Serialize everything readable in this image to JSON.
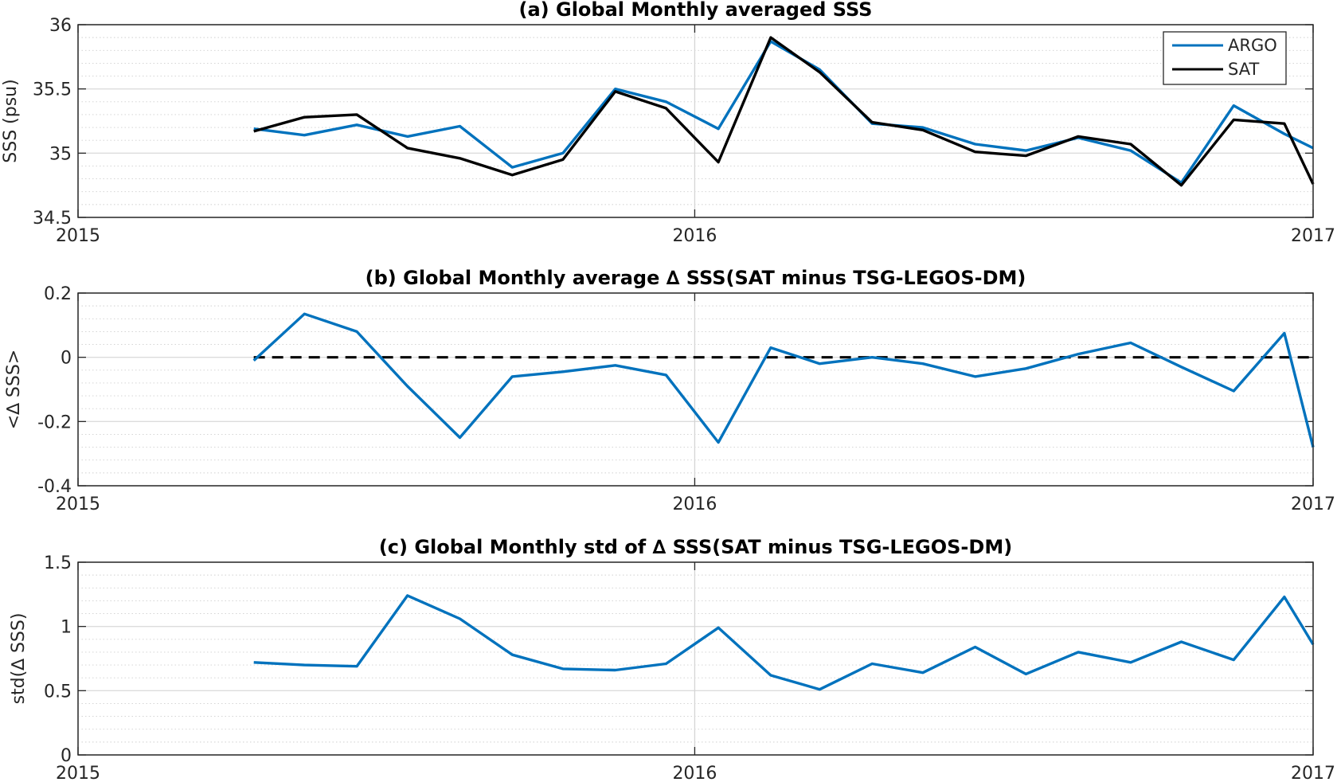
{
  "colors": {
    "argo": "#0072BD",
    "sat": "#000000",
    "zero_line": "#000000"
  },
  "x_ticks": [
    "2015",
    "2016",
    "2017"
  ],
  "legend": {
    "location": "top-right",
    "entries": [
      "ARGO",
      "SAT"
    ]
  },
  "chart_data": [
    {
      "type": "line",
      "title": "(a) Global Monthly averaged SSS",
      "ylabel": "SSS (psu)",
      "xlim": [
        "2015-01-01",
        "2017-01-01"
      ],
      "ylim": [
        34.5,
        36
      ],
      "yticks": [
        "34.5",
        "35",
        "35.5",
        "36"
      ],
      "grid": true,
      "x": [
        "2015-04-15",
        "2015-05-15",
        "2015-06-15",
        "2015-07-15",
        "2015-08-15",
        "2015-09-15",
        "2015-10-15",
        "2015-11-15",
        "2015-12-15",
        "2016-01-15",
        "2016-02-15",
        "2016-03-15",
        "2016-04-15",
        "2016-05-15",
        "2016-06-15",
        "2016-07-15",
        "2016-08-15",
        "2016-09-15",
        "2016-10-15",
        "2016-11-15",
        "2016-12-15",
        "2017-01-01"
      ],
      "series": [
        {
          "name": "ARGO",
          "values": [
            35.19,
            35.14,
            35.22,
            35.13,
            35.21,
            34.89,
            35.0,
            35.5,
            35.4,
            35.19,
            35.87,
            35.65,
            35.23,
            35.2,
            35.07,
            35.02,
            35.12,
            35.02,
            34.77,
            35.37,
            35.15,
            35.04
          ]
        },
        {
          "name": "SAT",
          "values": [
            35.17,
            35.28,
            35.3,
            35.04,
            34.96,
            34.83,
            34.95,
            35.48,
            35.35,
            34.93,
            35.9,
            35.63,
            35.24,
            35.18,
            35.01,
            34.98,
            35.13,
            35.07,
            34.75,
            35.26,
            35.23,
            34.76
          ]
        }
      ]
    },
    {
      "type": "line",
      "title": "(b) Global Monthly average ∆ SSS(SAT minus TSG-LEGOS-DM)",
      "ylabel": "<∆ SSS>",
      "xlim": [
        "2015-01-01",
        "2017-01-01"
      ],
      "ylim": [
        -0.4,
        0.2
      ],
      "yticks": [
        "-0.4",
        "-0.2",
        "0",
        "0.2"
      ],
      "grid": true,
      "reference_line": {
        "y": 0,
        "style": "dashed",
        "x_start": "2015-04-15"
      },
      "x": [
        "2015-04-15",
        "2015-05-15",
        "2015-06-15",
        "2015-07-15",
        "2015-08-15",
        "2015-09-15",
        "2015-10-15",
        "2015-11-15",
        "2015-12-15",
        "2016-01-15",
        "2016-02-15",
        "2016-03-15",
        "2016-04-15",
        "2016-05-15",
        "2016-06-15",
        "2016-07-15",
        "2016-08-15",
        "2016-09-15",
        "2016-10-15",
        "2016-11-15",
        "2016-12-15",
        "2017-01-01"
      ],
      "series": [
        {
          "values": [
            -0.01,
            0.135,
            0.08,
            -0.09,
            -0.25,
            -0.06,
            -0.045,
            -0.025,
            -0.055,
            -0.265,
            0.03,
            -0.02,
            0.0,
            -0.02,
            -0.06,
            -0.035,
            0.01,
            0.045,
            -0.03,
            -0.105,
            0.075,
            -0.28
          ]
        }
      ]
    },
    {
      "type": "line",
      "title": "(c) Global Monthly std of ∆ SSS(SAT minus TSG-LEGOS-DM)",
      "ylabel": "std(∆ SSS)",
      "xlim": [
        "2015-01-01",
        "2017-01-01"
      ],
      "ylim": [
        0,
        1.5
      ],
      "yticks": [
        "0",
        "0.5",
        "1",
        "1.5"
      ],
      "grid": true,
      "x": [
        "2015-04-15",
        "2015-05-15",
        "2015-06-15",
        "2015-07-15",
        "2015-08-15",
        "2015-09-15",
        "2015-10-15",
        "2015-11-15",
        "2015-12-15",
        "2016-01-15",
        "2016-02-15",
        "2016-03-15",
        "2016-04-15",
        "2016-05-15",
        "2016-06-15",
        "2016-07-15",
        "2016-08-15",
        "2016-09-15",
        "2016-10-15",
        "2016-11-15",
        "2016-12-15",
        "2017-01-01"
      ],
      "series": [
        {
          "values": [
            0.72,
            0.7,
            0.69,
            1.24,
            1.06,
            0.78,
            0.67,
            0.66,
            0.71,
            0.99,
            0.62,
            0.51,
            0.71,
            0.64,
            0.84,
            0.63,
            0.8,
            0.72,
            0.88,
            0.74,
            1.23,
            0.86
          ]
        }
      ]
    }
  ]
}
